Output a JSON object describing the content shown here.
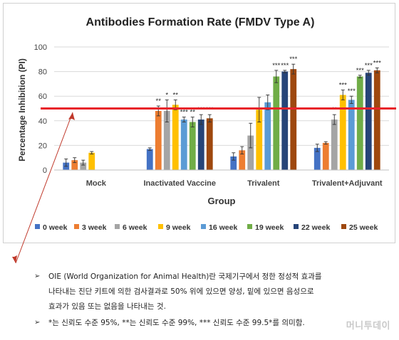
{
  "chart_data": {
    "type": "bar",
    "title": "Antibodies Formation Rate (FMDV Type A)",
    "xlabel": "Group",
    "ylabel": "Percentage Inhibition (PI)",
    "ylim": [
      0,
      100
    ],
    "yticks": [
      0,
      20,
      40,
      60,
      80,
      100
    ],
    "grid": true,
    "legend_position": "bottom",
    "categories": [
      "Mock",
      "Inactivated Vaccine",
      "Trivalent",
      "Trivalent+Adjuvant"
    ],
    "threshold": 50,
    "series": [
      {
        "name": "0 week",
        "color": "#4472c4",
        "values": [
          6,
          17,
          11,
          18
        ],
        "errors": [
          3,
          1,
          3,
          3
        ],
        "sig": [
          "",
          "",
          "",
          ""
        ]
      },
      {
        "name": "3 week",
        "color": "#ed7d31",
        "values": [
          8,
          48,
          16,
          22
        ],
        "errors": [
          2,
          4,
          3,
          1
        ],
        "sig": [
          "",
          "**",
          "",
          ""
        ]
      },
      {
        "name": "6 week",
        "color": "#a5a5a5",
        "values": [
          6,
          48,
          28,
          41
        ],
        "errors": [
          2,
          9,
          10,
          4
        ],
        "sig": [
          "",
          "*",
          "",
          "**"
        ]
      },
      {
        "name": "9 week",
        "color": "#ffc000",
        "values": [
          14,
          53,
          49,
          61
        ],
        "errors": [
          1,
          4,
          10,
          4
        ],
        "sig": [
          "",
          "**",
          "",
          "***"
        ]
      },
      {
        "name": "16 week",
        "color": "#5b9bd5",
        "values": [
          null,
          41,
          55,
          57
        ],
        "errors": [
          0,
          2,
          6,
          3
        ],
        "sig": [
          "",
          "***",
          "",
          "***"
        ]
      },
      {
        "name": "19 week",
        "color": "#70ad47",
        "values": [
          null,
          39,
          76,
          76
        ],
        "errors": [
          0,
          4,
          5,
          1
        ],
        "sig": [
          "",
          "**",
          "***",
          "***"
        ]
      },
      {
        "name": "22 week",
        "color": "#264478",
        "values": [
          null,
          41,
          80,
          79
        ],
        "errors": [
          0,
          4,
          1,
          2
        ],
        "sig": [
          "",
          "***",
          "***",
          "***"
        ]
      },
      {
        "name": "25 week",
        "color": "#9e480e",
        "values": [
          null,
          42,
          82,
          81
        ],
        "errors": [
          0,
          3,
          4,
          2
        ],
        "sig": [
          "",
          "***",
          "***",
          "***"
        ]
      }
    ]
  },
  "notes": [
    {
      "line1": "OIE (World Organization for Animal Health)란 국제기구에서 정한 정성적 효과를",
      "line2": "나타내는 진단 키트에 의한 검사결과로 50% 위에 있으면 양성, 밑에 있으면 음성으로",
      "line3": "효과가 있음 또는 없음을 나타내는 것."
    },
    {
      "line1": "*는 신뢰도 수준 95%, **는 신뢰도 수준 99%, *** 신뢰도 수준 99.5*를 의미함."
    }
  ],
  "watermark": "머니투데이",
  "colors": {
    "threshold_line": "#e8232a",
    "annotation_arrow": "#c0392b"
  }
}
